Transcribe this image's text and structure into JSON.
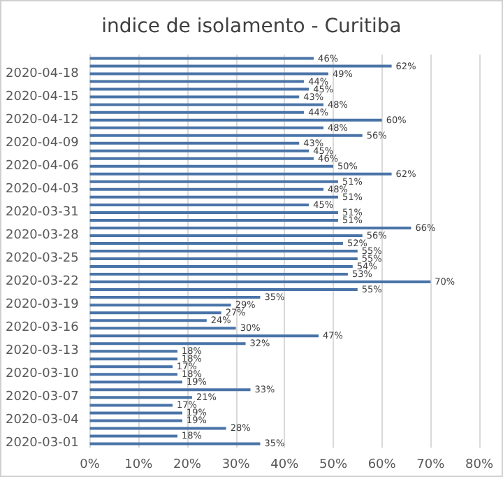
{
  "chart_data": {
    "type": "bar",
    "orientation": "horizontal",
    "title": "indice de isolamento - Curitiba",
    "categories": [
      null,
      null,
      "2020-04-18",
      null,
      null,
      "2020-04-15",
      null,
      null,
      "2020-04-12",
      null,
      null,
      "2020-04-09",
      null,
      null,
      "2020-04-06",
      null,
      null,
      "2020-04-03",
      null,
      null,
      "2020-03-31",
      null,
      null,
      "2020-03-28",
      null,
      null,
      "2020-03-25",
      null,
      null,
      "2020-03-22",
      null,
      null,
      "2020-03-19",
      null,
      null,
      "2020-03-16",
      null,
      null,
      "2020-03-13",
      null,
      null,
      "2020-03-10",
      null,
      null,
      "2020-03-07",
      null,
      null,
      "2020-03-04",
      null,
      null,
      "2020-03-01"
    ],
    "values": [
      46,
      62,
      49,
      44,
      45,
      43,
      48,
      44,
      60,
      48,
      56,
      43,
      45,
      46,
      50,
      62,
      51,
      48,
      51,
      45,
      51,
      51,
      66,
      56,
      52,
      55,
      55,
      54,
      53,
      70,
      55,
      35,
      29,
      27,
      24,
      30,
      47,
      32,
      18,
      18,
      17,
      18,
      19,
      33,
      21,
      17,
      19,
      19,
      28,
      18,
      35
    ],
    "value_labels": [
      "46%",
      "62%",
      "49%",
      "44%",
      "45%",
      "43%",
      "48%",
      "44%",
      "60%",
      "48%",
      "56%",
      "43%",
      "45%",
      "46%",
      "50%",
      "62%",
      "51%",
      "48%",
      "51%",
      "45%",
      "51%",
      "51%",
      "66%",
      "56%",
      "52%",
      "55%",
      "55%",
      "54%",
      "53%",
      "70%",
      "55%",
      "35%",
      "29%",
      "27%",
      "24%",
      "30%",
      "47%",
      "32%",
      "18%",
      "18%",
      "17%",
      "18%",
      "19%",
      "33%",
      "21%",
      "17%",
      "19%",
      "19%",
      "28%",
      "18%",
      "35%"
    ],
    "color": "#4a74a8",
    "xlim": [
      0,
      80
    ],
    "xticks": [
      {
        "value": 0,
        "label": "0%"
      },
      {
        "value": 10,
        "label": "10%"
      },
      {
        "value": 20,
        "label": "20%"
      },
      {
        "value": 30,
        "label": "30%"
      },
      {
        "value": 40,
        "label": "40%"
      },
      {
        "value": 50,
        "label": "50%"
      },
      {
        "value": 60,
        "label": "60%"
      },
      {
        "value": 70,
        "label": "70%"
      },
      {
        "value": 80,
        "label": "80%"
      }
    ],
    "grid": "x"
  }
}
